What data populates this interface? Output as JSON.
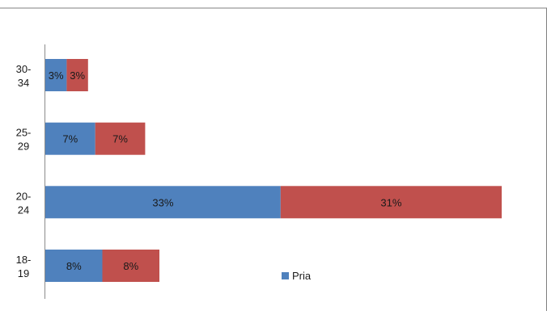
{
  "chart_data": {
    "type": "bar",
    "orientation": "horizontal",
    "stacked": true,
    "categories": [
      "18-19",
      "20-24",
      "25-29",
      "30-34"
    ],
    "category_labels": [
      [
        "18-",
        "19"
      ],
      [
        "20-",
        "24"
      ],
      [
        "25-",
        "29"
      ],
      [
        "30-",
        "34"
      ]
    ],
    "series": [
      {
        "name": "Pria",
        "values": [
          8,
          33,
          7,
          3
        ],
        "labels": [
          "8%",
          "33%",
          "7%",
          "3%"
        ],
        "color": "#4F81BD"
      },
      {
        "values": [
          8,
          31,
          7,
          3
        ],
        "labels": [
          "8%",
          "31%",
          "7%",
          "3%"
        ],
        "color": "#C0504D"
      }
    ],
    "xlim": [
      0,
      66
    ],
    "grid": false,
    "legend": {
      "position": "bottom-right",
      "entries": [
        "Pria"
      ]
    },
    "title": "",
    "xlabel": "",
    "ylabel": ""
  }
}
